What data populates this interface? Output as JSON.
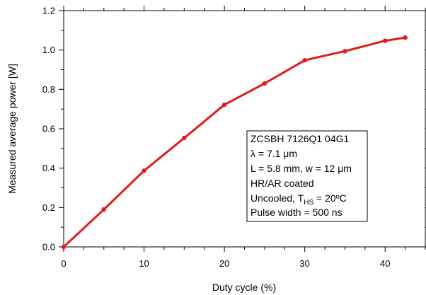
{
  "chart_data": {
    "type": "line",
    "xlabel": "Duty cycle (%)",
    "ylabel": "Measured average power [W]",
    "xlim": [
      0,
      45
    ],
    "ylim": [
      0,
      1.2
    ],
    "x_ticks": [
      0,
      10,
      20,
      30,
      40
    ],
    "x_tick_labels": [
      "0",
      "10",
      "20",
      "30",
      "40"
    ],
    "y_ticks": [
      0,
      0.2,
      0.4,
      0.6,
      0.8,
      1.0,
      1.2
    ],
    "y_tick_labels": [
      "0.0",
      "0.2",
      "0.4",
      "0.6",
      "0.8",
      "1.0",
      "1.2"
    ],
    "grid": false,
    "series": [
      {
        "color": "#e31b1b",
        "x": [
          0,
          5,
          10,
          15,
          20,
          25,
          30,
          35,
          40,
          42.5
        ],
        "y": [
          0.0,
          0.19,
          0.387,
          0.553,
          0.722,
          0.83,
          0.948,
          0.994,
          1.047,
          1.063
        ]
      }
    ],
    "annotation": {
      "line1": "ZCSBH 7126Q1 04G1",
      "line2_symbol": "λ",
      "line2_rest": " = 7.1 μm",
      "line3": "L = 5.8 mm, w = 12 μm",
      "line4": "HR/AR coated",
      "line5_prefix": "Uncooled, T",
      "line5_sub": "HS",
      "line5_suffix": " = 20ºC",
      "line6": "Pulse width = 500 ns"
    }
  }
}
